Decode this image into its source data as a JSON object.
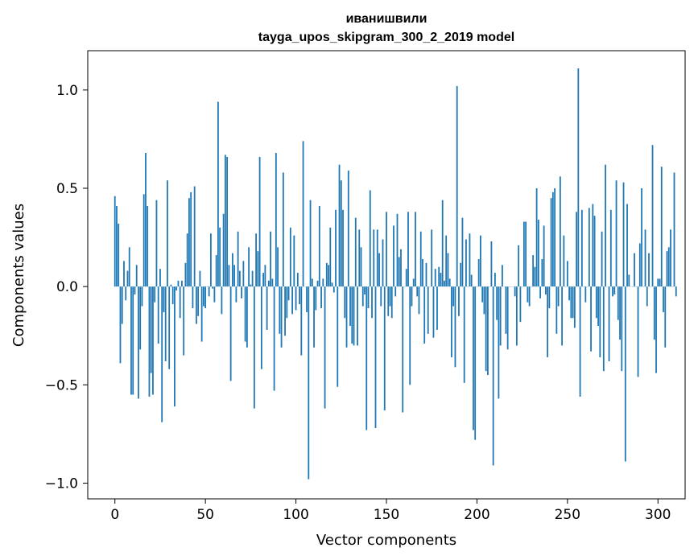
{
  "chart_data": {
    "type": "bar",
    "title": "иванишвили",
    "subtitle": "tayga_upos_skipgram_300_2_2019 model",
    "xlabel": "Vector components",
    "ylabel": "Components values",
    "xlim": [
      -15,
      315
    ],
    "ylim": [
      -1.08,
      1.2
    ],
    "xticks": [
      0,
      50,
      100,
      150,
      200,
      250,
      300
    ],
    "xtick_labels": [
      "0",
      "50",
      "100",
      "150",
      "200",
      "250",
      "300"
    ],
    "yticks": [
      -1.0,
      -0.5,
      0.0,
      0.5,
      1.0
    ],
    "ytick_labels": [
      "−1.0",
      "−0.5",
      "0.0",
      "0.5",
      "1.0"
    ],
    "grid": false,
    "bar_color": "#1f77b4",
    "values": [
      0.46,
      0.41,
      0.32,
      -0.39,
      -0.19,
      0.13,
      -0.07,
      0.08,
      0.2,
      -0.55,
      -0.55,
      -0.04,
      0.11,
      -0.57,
      -0.32,
      -0.1,
      0.47,
      0.68,
      0.41,
      -0.56,
      -0.44,
      -0.55,
      -0.08,
      0.44,
      -0.29,
      0.09,
      -0.69,
      -0.13,
      -0.38,
      0.54,
      -0.42,
      0.01,
      -0.09,
      -0.61,
      -0.02,
      0.03,
      -0.16,
      0.03,
      -0.35,
      0.12,
      0.27,
      0.45,
      0.48,
      -0.11,
      0.51,
      -0.19,
      -0.15,
      0.08,
      -0.28,
      -0.1,
      -0.11,
      0.0,
      -0.05,
      0.27,
      -0.01,
      -0.08,
      0.16,
      0.94,
      0.3,
      -0.14,
      0.37,
      0.67,
      0.66,
      0.11,
      -0.48,
      0.17,
      0.11,
      -0.08,
      0.28,
      0.08,
      -0.06,
      0.13,
      -0.28,
      -0.31,
      0.2,
      0.01,
      0.08,
      -0.62,
      0.27,
      0.18,
      0.66,
      -0.42,
      0.07,
      0.11,
      -0.22,
      0.03,
      0.28,
      0.04,
      -0.53,
      0.68,
      0.2,
      -0.24,
      -0.31,
      0.58,
      -0.25,
      -0.16,
      -0.07,
      0.3,
      -0.14,
      0.26,
      -0.12,
      0.07,
      -0.09,
      -0.35,
      0.74,
      0.0,
      -0.13,
      -0.98,
      0.44,
      0.04,
      -0.31,
      -0.12,
      0.03,
      0.41,
      -0.11,
      0.04,
      -0.62,
      0.12,
      0.11,
      0.3,
      0.02,
      -0.03,
      0.39,
      -0.51,
      0.62,
      0.54,
      0.39,
      -0.16,
      -0.31,
      0.59,
      -0.2,
      -0.29,
      -0.3,
      0.35,
      -0.3,
      0.29,
      0.2,
      -0.1,
      -0.04,
      -0.73,
      -0.11,
      0.49,
      -0.16,
      0.29,
      -0.72,
      0.29,
      0.17,
      -0.1,
      0.24,
      -0.63,
      0.38,
      -0.15,
      -0.1,
      -0.16,
      0.31,
      -0.05,
      0.37,
      0.15,
      0.19,
      -0.64,
      0.0,
      0.09,
      0.38,
      -0.5,
      -0.1,
      0.04,
      0.38,
      -0.05,
      -0.14,
      0.28,
      0.14,
      -0.29,
      0.12,
      -0.24,
      0.0,
      0.29,
      -0.26,
      0.09,
      -0.22,
      0.1,
      0.07,
      0.44,
      0.03,
      0.26,
      0.17,
      0.04,
      -0.36,
      -0.1,
      -0.41,
      1.02,
      -0.15,
      0.12,
      0.35,
      -0.49,
      0.24,
      0.0,
      0.27,
      0.06,
      -0.73,
      -0.78,
      0.0,
      0.14,
      0.26,
      -0.08,
      -0.14,
      -0.43,
      -0.45,
      0.0,
      0.23,
      -0.91,
      0.07,
      -0.17,
      -0.57,
      -0.3,
      0.11,
      0.0,
      -0.24,
      -0.32,
      0.0,
      0.0,
      0.0,
      -0.05,
      -0.3,
      0.21,
      -0.18,
      0.0,
      0.33,
      0.33,
      -0.08,
      -0.1,
      0.0,
      0.16,
      0.1,
      0.5,
      0.34,
      -0.06,
      0.14,
      0.31,
      -0.04,
      -0.36,
      -0.11,
      0.45,
      0.48,
      0.5,
      -0.24,
      -0.1,
      0.56,
      -0.3,
      0.26,
      0.0,
      0.13,
      -0.07,
      -0.16,
      -0.16,
      -0.21,
      0.38,
      1.11,
      -0.56,
      0.39,
      0.0,
      -0.08,
      0.0,
      0.4,
      -0.33,
      0.42,
      0.36,
      -0.16,
      -0.2,
      -0.36,
      0.28,
      -0.43,
      0.62,
      0.0,
      -0.38,
      0.39,
      -0.05,
      -0.04,
      0.54,
      -0.17,
      -0.27,
      -0.43,
      0.53,
      -0.89,
      0.42,
      0.06,
      0.0,
      0.0,
      0.17,
      0.0,
      -0.46,
      0.22,
      0.5,
      0.0,
      0.29,
      -0.1,
      0.17,
      0.0,
      0.72,
      -0.27,
      -0.44,
      0.04,
      0.04,
      0.61,
      -0.13,
      -0.31,
      0.18,
      0.2,
      0.29,
      0.0,
      0.58,
      -0.05
    ]
  }
}
